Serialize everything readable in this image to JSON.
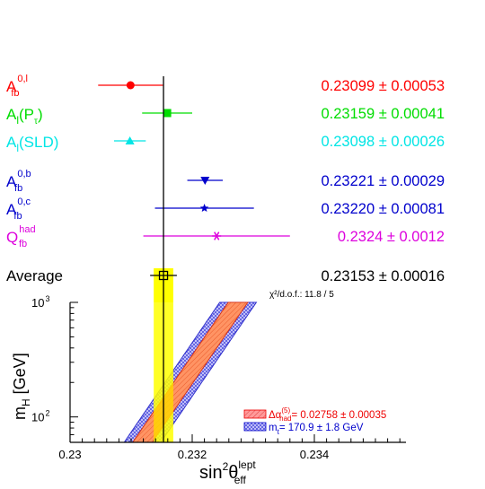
{
  "chart_data": {
    "type": "scatter",
    "title": "",
    "measurements": [
      {
        "label": "A",
        "sup": "0,l",
        "sub": "fb",
        "value": 0.23099,
        "error": 0.00053,
        "text": "0.23099 ± 0.00053",
        "color": "#ff0000",
        "marker": "circle"
      },
      {
        "label": "A",
        "sup": "",
        "sub": "l",
        "paren": "(P",
        "paren_sub": "τ",
        "paren_close": ")",
        "value": 0.23159,
        "error": 0.00041,
        "text": "0.23159 ± 0.00041",
        "color": "#00dd00",
        "marker": "square"
      },
      {
        "label": "A",
        "sup": "",
        "sub": "l",
        "paren": "(SLD)",
        "paren_sub": "",
        "paren_close": "",
        "value": 0.23098,
        "error": 0.00026,
        "text": "0.23098 ± 0.00026",
        "color": "#00e5e5",
        "marker": "triangle-up"
      },
      {
        "label": "A",
        "sup": "0,b",
        "sub": "fb",
        "value": 0.23221,
        "error": 0.00029,
        "text": "0.23221 ± 0.00029",
        "color": "#0000cc",
        "marker": "triangle-down"
      },
      {
        "label": "A",
        "sup": "0,c",
        "sub": "fb",
        "value": 0.2322,
        "error": 0.00081,
        "text": "0.23220 ± 0.00081",
        "color": "#0000cc",
        "marker": "star"
      },
      {
        "label": "Q",
        "sup": "had",
        "sub": "fb",
        "value": 0.2324,
        "error": 0.0012,
        "text": "0.2324 ± 0.0012",
        "color": "#dd00dd",
        "marker": "asterisk"
      }
    ],
    "average": {
      "label": "Average",
      "value": 0.23153,
      "error": 0.00016,
      "text": "0.23153 ± 0.00016",
      "color": "#000000"
    },
    "chi2": "χ²/d.o.f.: 11.8 / 5",
    "xlim": [
      0.23,
      0.2355
    ],
    "xticks": [
      "0.23",
      "0.232",
      "0.234"
    ],
    "xtick_values": [
      0.23,
      0.232,
      0.234
    ],
    "xlabel": {
      "base": "sin",
      "sup1": "2",
      "theta": "θ",
      "sup2": "lept",
      "sub2": "eff"
    },
    "ylabel": {
      "base": "m",
      "sub": "H",
      "unit": "[GeV]"
    },
    "ylim_log": [
      60,
      1000
    ],
    "yticks": [
      {
        "base": "10",
        "exp": "3",
        "value": 1000
      },
      {
        "base": "10",
        "exp": "2",
        "value": 100
      }
    ],
    "band_color": "#ffff00",
    "legend": [
      {
        "text_pre": "Δα",
        "sup": "(5)",
        "sub": "had",
        "text_post": "= 0.02758 ± 0.00035",
        "color": "#ee0000",
        "fill": "#ff9a9a"
      },
      {
        "text_pre": "m",
        "sup": "",
        "sub": "t",
        "text_post": "= 170.9 ± 1.8 GeV",
        "color": "#0000cc",
        "fill": "#c8c8ff"
      }
    ],
    "legend_position": "bottom-right"
  }
}
